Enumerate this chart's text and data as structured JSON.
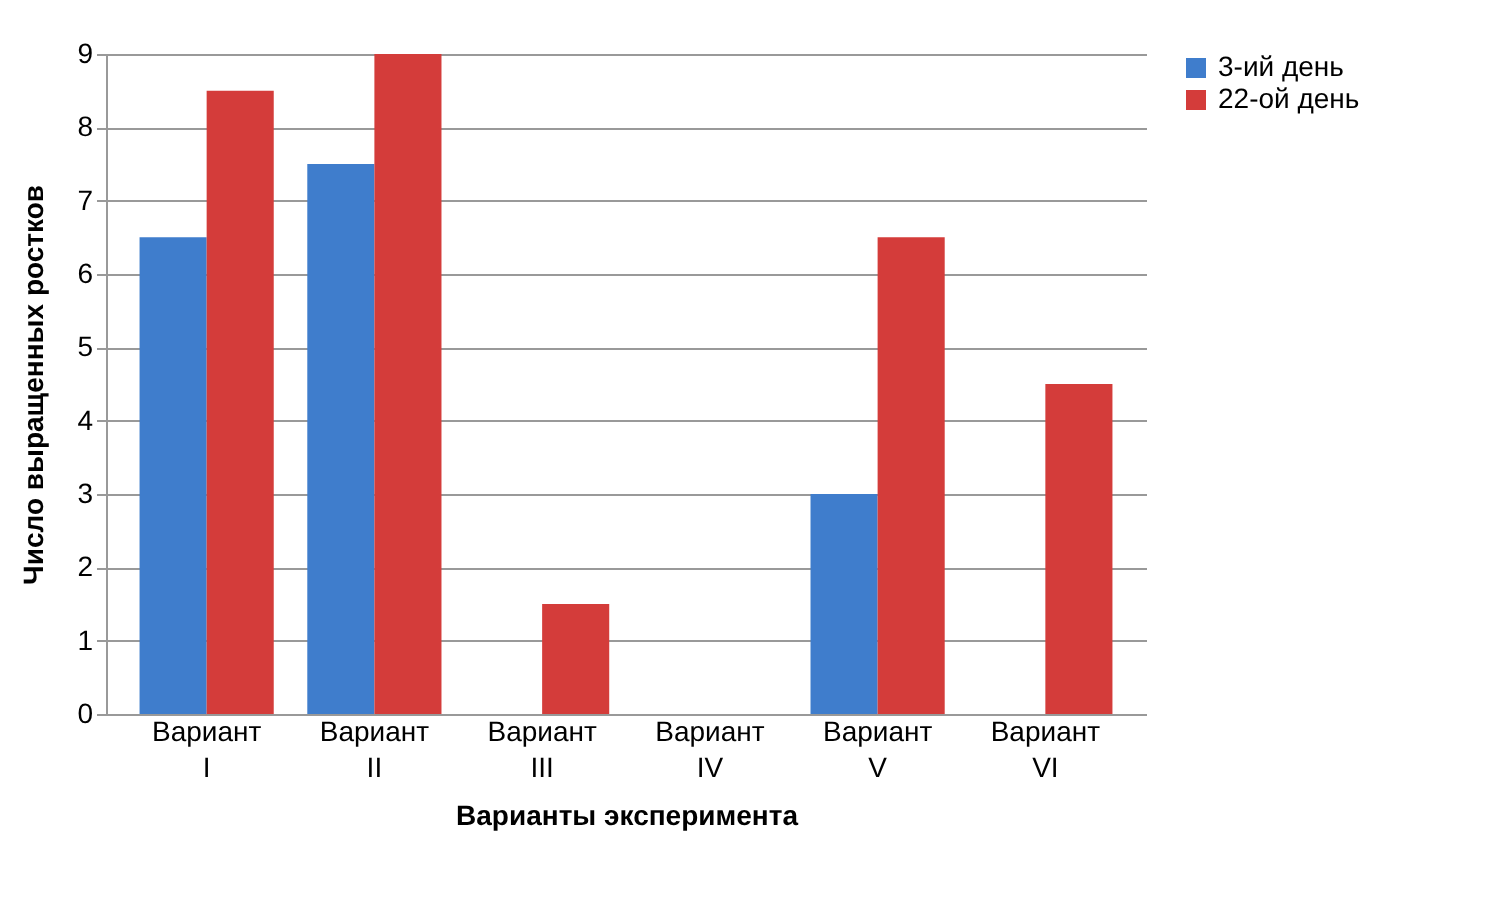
{
  "chart_data": {
    "type": "bar",
    "xlabel": "Варианты эксперимента",
    "ylabel": "Число выращенных ростков",
    "categories": [
      "Вариант I",
      "Вариант II",
      "Вариант III",
      "Вариант IV",
      "Вариант V",
      "Вариант VI"
    ],
    "series": [
      {
        "name": "3-ий день",
        "color": "#3f7dcc",
        "values": [
          6.5,
          7.5,
          0,
          0,
          3,
          0
        ]
      },
      {
        "name": "22-ой день",
        "color": "#d43c3a",
        "values": [
          8.5,
          9,
          1.5,
          0,
          6.5,
          4.5
        ]
      }
    ],
    "ylim": [
      0,
      9
    ],
    "yticks": [
      0,
      1,
      2,
      3,
      4,
      5,
      6,
      7,
      8,
      9
    ],
    "grid": "y",
    "legend": "right"
  }
}
